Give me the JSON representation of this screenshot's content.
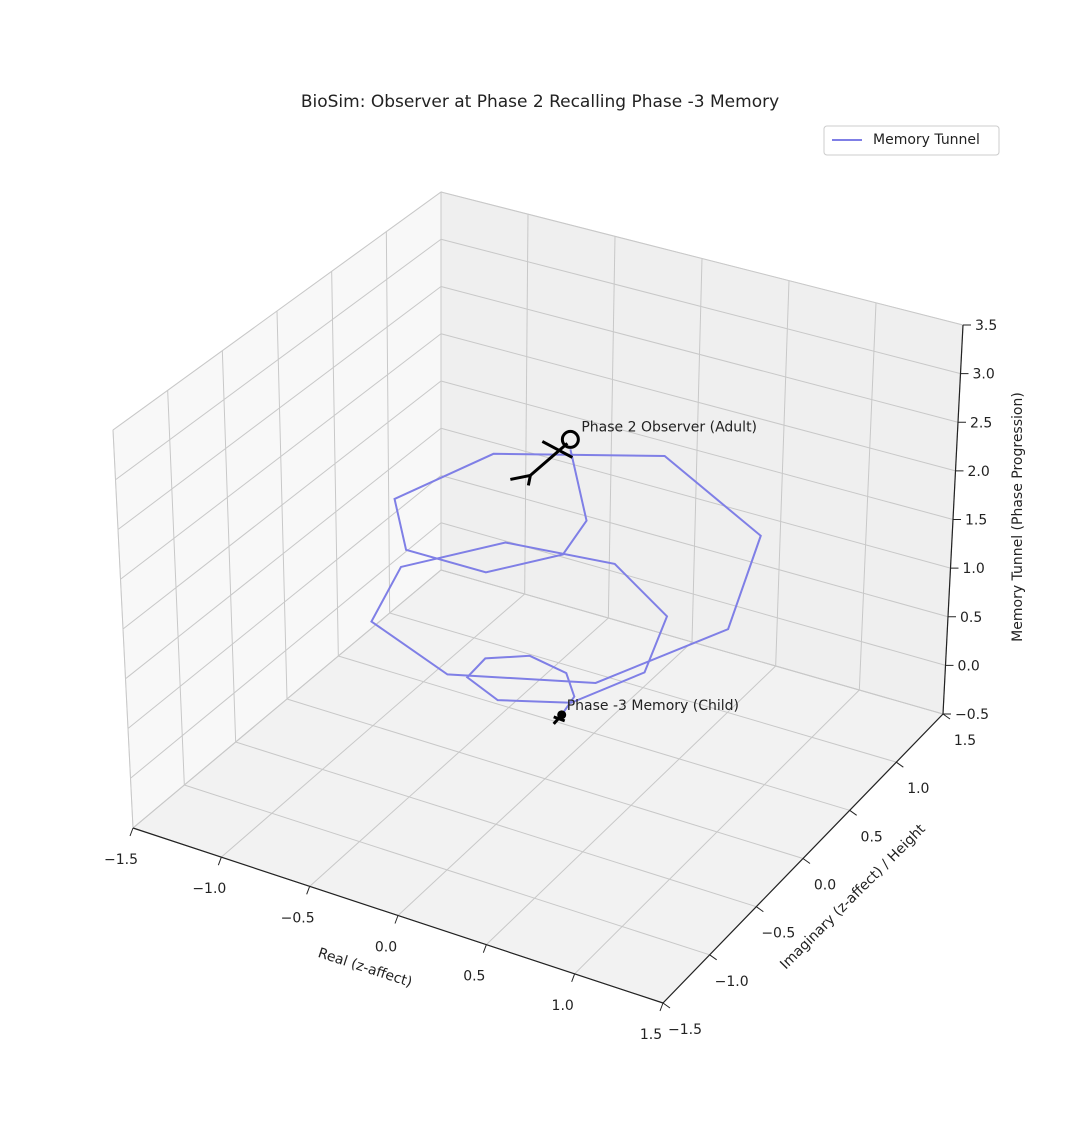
{
  "chart_data": {
    "type": "line3d",
    "title": "BioSim: Observer at Phase 2 Recalling Phase -3 Memory",
    "xlabel": "Real (z-affect)",
    "ylabel": "Imaginary (z-affect) / Height",
    "zlabel": "Memory Tunnel (Phase Progression)",
    "xlim": [
      -1.5,
      1.5
    ],
    "ylim": [
      -1.5,
      1.5
    ],
    "zlim": [
      -0.5,
      3.5
    ],
    "xticks": [
      {
        "value": -1.5,
        "label": "−1.5"
      },
      {
        "value": -1,
        "label": "−1.0"
      },
      {
        "value": -0.5,
        "label": "−0.5"
      },
      {
        "value": 0,
        "label": "0.0"
      },
      0.5,
      {
        "value": 1,
        "label": "1.0"
      },
      1.5
    ],
    "yticks": [
      {
        "value": -1.5,
        "label": "−1.5"
      },
      {
        "value": -1,
        "label": "−1.0"
      },
      {
        "value": -0.5,
        "label": "−0.5"
      },
      {
        "value": 0,
        "label": "0.0"
      },
      0.5,
      {
        "value": 1,
        "label": "1.0"
      },
      1.5
    ],
    "zticks": [
      {
        "value": -0.5,
        "label": "−0.5"
      },
      {
        "value": 0,
        "label": "0.0"
      },
      0.5,
      {
        "value": 1,
        "label": "1.0"
      },
      1.5,
      {
        "value": 2,
        "label": "2.0"
      },
      2.5,
      {
        "value": 3,
        "label": "3.0"
      },
      3.5
    ],
    "grid": true,
    "legend": "upper right",
    "series": [
      {
        "name": "Memory Tunnel",
        "color": "#7f7fe6",
        "x": [
          0.1,
          0.11,
          0,
          -0.2,
          -0.34,
          -0.28,
          0,
          0.37,
          0.58,
          0.45,
          0,
          -0.54,
          -0.82,
          -0.62,
          0,
          0.71,
          1.06,
          0.79,
          0,
          -0.71,
          -0.85,
          -0.49,
          0,
          0.28,
          0.25,
          0.1
        ],
        "y": [
          0,
          0.11,
          0.22,
          0.2,
          0,
          -0.28,
          -0.46,
          -0.37,
          0,
          0.45,
          0.7,
          0.54,
          0,
          -0.62,
          -0.94,
          -0.71,
          0,
          0.79,
          1.18,
          0.71,
          0,
          -0.49,
          -0.55,
          -0.28,
          0,
          0.1
        ],
        "z": [
          0.2,
          0.29,
          0.37,
          0.46,
          0.54,
          0.63,
          0.71,
          0.8,
          0.88,
          0.97,
          1.05,
          1.14,
          1.22,
          1.31,
          1.39,
          1.48,
          1.56,
          1.65,
          1.73,
          1.82,
          1.9,
          1.99,
          2.07,
          2.16,
          2.24,
          2.8
        ]
      }
    ],
    "annotations": [
      {
        "text": "Phase -3 Memory (Child)",
        "x": 0.1,
        "y": 0,
        "z": 0.2
      },
      {
        "text": "Phase 2 Observer (Adult)",
        "x": 0.1,
        "y": 0.1,
        "z": 2.9
      }
    ]
  }
}
